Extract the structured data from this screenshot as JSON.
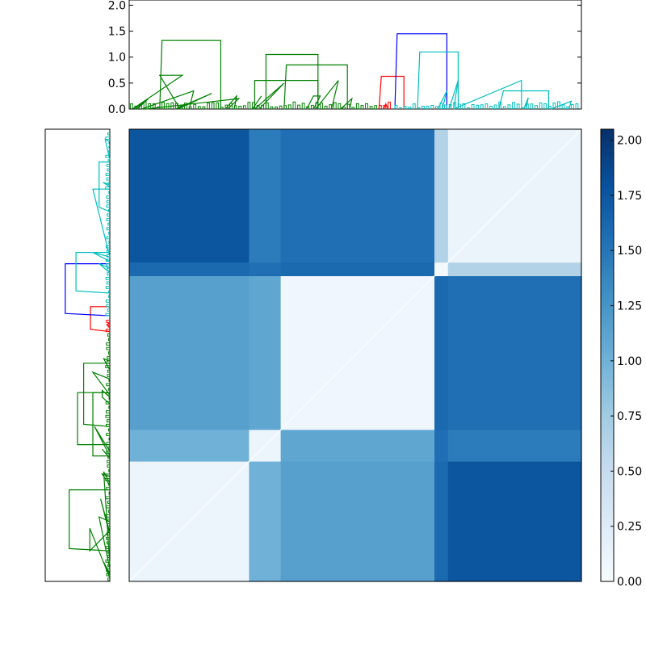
{
  "chart_data": [
    {
      "type": "dendrogram",
      "name": "top-dendrogram",
      "orientation": "top",
      "ylim": [
        0,
        2.1
      ],
      "ticks": [
        {
          "value": 0.0,
          "label": "0.0"
        },
        {
          "value": 0.5,
          "label": "0.5"
        },
        {
          "value": 1.0,
          "label": "1.0"
        },
        {
          "value": 1.5,
          "label": "1.5"
        },
        {
          "value": 2.0,
          "label": "2.0"
        }
      ],
      "n_leaves": 200,
      "links": [
        {
          "x": [
            1,
            23,
            13,
            22
          ],
          "h": [
            0.0,
            0.65,
            0.65,
            0.0
          ],
          "color": "#008000"
        },
        {
          "x": [
            2,
            8,
            8,
            3
          ],
          "h": [
            0.0,
            0.2,
            0.2,
            0.0
          ],
          "color": "#008000"
        },
        {
          "x": [
            5,
            28,
            28,
            26
          ],
          "h": [
            0.0,
            0.35,
            0.35,
            0.0
          ],
          "color": "#008000"
        },
        {
          "x": [
            7,
            48,
            48,
            43
          ],
          "h": [
            0.0,
            0.2,
            0.2,
            0.0
          ],
          "color": "#008000"
        },
        {
          "x": [
            20,
            36,
            36,
            21
          ],
          "h": [
            0.0,
            0.3,
            0.3,
            0.0
          ],
          "color": "#008000"
        },
        {
          "x": [
            13,
            14,
            40,
            40
          ],
          "h": [
            0.0,
            1.32,
            1.32,
            0.0
          ],
          "color": "#008000"
        },
        {
          "x": [
            42,
            47,
            47,
            46
          ],
          "h": [
            0.0,
            0.25,
            0.25,
            0.0
          ],
          "color": "#008000"
        },
        {
          "x": [
            54,
            58,
            58,
            54
          ],
          "h": [
            0.0,
            0.25,
            0.25,
            0.0
          ],
          "color": "#008000"
        },
        {
          "x": [
            55,
            68,
            68,
            57
          ],
          "h": [
            0.0,
            0.5,
            0.5,
            0.0
          ],
          "color": "#008000"
        },
        {
          "x": [
            55,
            55,
            83,
            83
          ],
          "h": [
            0.0,
            0.55,
            0.55,
            0.0
          ],
          "color": "#008000"
        },
        {
          "x": [
            60,
            60,
            83,
            83
          ],
          "h": [
            0.0,
            1.05,
            1.05,
            0.0
          ],
          "color": "#008000"
        },
        {
          "x": [
            68,
            69,
            96,
            96
          ],
          "h": [
            0.0,
            0.85,
            0.85,
            0.0
          ],
          "color": "#008000"
        },
        {
          "x": [
            78,
            81,
            84,
            81
          ],
          "h": [
            0.0,
            0.25,
            0.25,
            0.0
          ],
          "color": "#008000"
        },
        {
          "x": [
            82,
            92,
            92,
            89
          ],
          "h": [
            0.0,
            0.55,
            0.55,
            0.0
          ],
          "color": "#008000"
        },
        {
          "x": [
            93,
            98,
            98,
            97
          ],
          "h": [
            0.0,
            0.2,
            0.2,
            0.0
          ],
          "color": "#008000"
        },
        {
          "x": [
            110,
            111,
            121,
            121
          ],
          "h": [
            0.0,
            0.63,
            0.63,
            0.0
          ],
          "color": "#ff0000"
        },
        {
          "x": [
            112,
            113,
            113,
            114
          ],
          "h": [
            0.0,
            0.1,
            0.1,
            0.0
          ],
          "color": "#ff0000"
        },
        {
          "x": [
            117,
            118,
            140,
            140
          ],
          "h": [
            0.0,
            1.45,
            1.45,
            0.0
          ],
          "color": "#0000ff"
        },
        {
          "x": [
            127,
            128,
            145,
            145
          ],
          "h": [
            0.0,
            1.1,
            1.1,
            0.0
          ],
          "color": "#00bfbf"
        },
        {
          "x": [
            136,
            140,
            140,
            138
          ],
          "h": [
            0.0,
            0.35,
            0.35,
            0.0
          ],
          "color": "#00bfbf"
        },
        {
          "x": [
            141,
            145,
            145,
            143
          ],
          "h": [
            0.0,
            0.55,
            0.55,
            0.0
          ],
          "color": "#00bfbf"
        },
        {
          "x": [
            143,
            173,
            173,
            173
          ],
          "h": [
            0.0,
            0.55,
            0.55,
            0.0
          ],
          "color": "#00bfbf"
        },
        {
          "x": [
            163,
            165,
            185,
            185
          ],
          "h": [
            0.0,
            0.35,
            0.35,
            0.0
          ],
          "color": "#00bfbf"
        },
        {
          "x": [
            174,
            176,
            176,
            175
          ],
          "h": [
            0.0,
            0.22,
            0.22,
            0.0
          ],
          "color": "#00bfbf"
        },
        {
          "x": [
            186,
            195,
            195,
            194
          ],
          "h": [
            0.0,
            0.15,
            0.15,
            0.0
          ],
          "color": "#00bfbf"
        }
      ]
    },
    {
      "type": "dendrogram",
      "name": "left-dendrogram",
      "orientation": "left",
      "n_leaves": 200,
      "note": "same clustering as top, rotated; top of panel = last leaves (cyan/red), bottom = first leaves (green)"
    },
    {
      "type": "heatmap",
      "name": "distance-matrix",
      "n": 200,
      "colormap": "Blues",
      "vmin": 0.0,
      "vmax": 2.05,
      "cluster_order": [
        "G3",
        "G2",
        "G1",
        "R",
        "C"
      ],
      "clusters": [
        {
          "id": "G1",
          "size": 68,
          "self": 0.08
        },
        {
          "id": "G2",
          "size": 14,
          "self": 0.1
        },
        {
          "id": "G3",
          "size": 53,
          "self": 0.1
        },
        {
          "id": "R",
          "size": 6,
          "self": 0.05
        },
        {
          "id": "C",
          "size": 59,
          "self": 0.12
        }
      ],
      "between": {
        "G1-G2": 1.1,
        "G1-G3": 1.15,
        "G2-G3": 1.0,
        "G1-R": 1.6,
        "G2-R": 1.55,
        "G3-R": 1.6,
        "G1-C": 1.55,
        "G2-C": 1.45,
        "G3-C": 1.75,
        "R-C": 0.65
      }
    },
    {
      "type": "colorbar",
      "name": "colorbar",
      "colormap": "Blues",
      "vmin": 0.0,
      "vmax": 2.05,
      "ticks": [
        {
          "value": 0.0,
          "label": "0.00"
        },
        {
          "value": 0.25,
          "label": "0.25"
        },
        {
          "value": 0.5,
          "label": "0.50"
        },
        {
          "value": 0.75,
          "label": "0.75"
        },
        {
          "value": 1.0,
          "label": "1.00"
        },
        {
          "value": 1.25,
          "label": "1.25"
        },
        {
          "value": 1.5,
          "label": "1.50"
        },
        {
          "value": 1.75,
          "label": "1.75"
        },
        {
          "value": 2.0,
          "label": "2.00"
        }
      ]
    }
  ]
}
